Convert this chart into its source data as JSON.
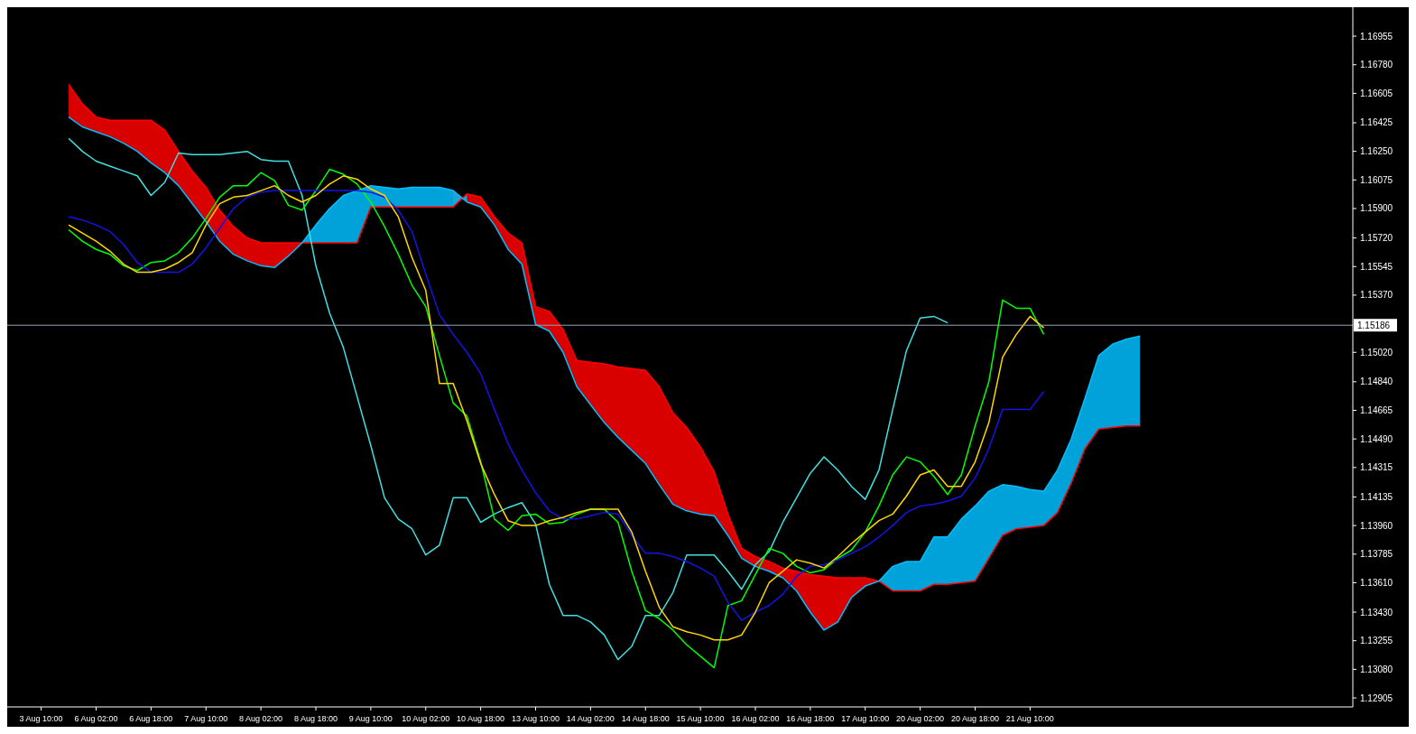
{
  "chart_data": {
    "type": "line",
    "categories": [
      "3 Aug 10:00",
      null,
      null,
      null,
      "6 Aug 02:00",
      null,
      null,
      null,
      "6 Aug 18:00",
      null,
      null,
      null,
      "7 Aug 10:00",
      null,
      null,
      null,
      "8 Aug 02:00",
      null,
      null,
      null,
      "8 Aug 18:00",
      null,
      null,
      null,
      "9 Aug 10:00",
      null,
      null,
      null,
      "10 Aug 02:00",
      null,
      null,
      null,
      "10 Aug 18:00",
      null,
      null,
      null,
      "13 Aug 10:00",
      null,
      null,
      null,
      "14 Aug 02:00",
      null,
      null,
      null,
      "14 Aug 18:00",
      null,
      null,
      null,
      "15 Aug 10:00",
      null,
      null,
      null,
      "16 Aug 02:00",
      null,
      null,
      null,
      "16 Aug 18:00",
      null,
      null,
      null,
      "17 Aug 10:00",
      null,
      null,
      null,
      "20 Aug 02:00",
      null,
      null,
      null,
      "20 Aug 18:00",
      null,
      null,
      null,
      "21 Aug 10:00",
      null,
      null,
      null,
      null,
      null,
      null,
      null,
      null,
      null,
      null,
      null,
      null,
      null,
      null,
      null,
      null,
      null,
      null,
      null,
      null,
      null,
      null,
      null
    ],
    "ylim": [
      1.1285,
      1.1711
    ],
    "yticks": [
      1.12905,
      {
        "value": 1.1308,
        "label": "1.13080"
      },
      1.13255,
      {
        "value": 1.1343,
        "label": "1.13430"
      },
      {
        "value": 1.1361,
        "label": "1.13610"
      },
      1.13785,
      {
        "value": 1.1396,
        "label": "1.13960"
      },
      1.14135,
      1.14315,
      {
        "value": 1.1449,
        "label": "1.14490"
      },
      1.14665,
      {
        "value": 1.1484,
        "label": "1.14840"
      },
      {
        "value": 1.1502,
        "label": "1.15020"
      },
      {
        "value": 1.1537,
        "label": "1.15370"
      },
      1.15545,
      {
        "value": 1.1572,
        "label": "1.15720"
      },
      {
        "value": 1.159,
        "label": "1.15900"
      },
      1.16075,
      {
        "value": 1.1625,
        "label": "1.16250"
      },
      1.16425,
      1.16605,
      {
        "value": 1.1678,
        "label": "1.16780"
      },
      1.16955
    ],
    "ref_lines": [
      {
        "axis": "y",
        "value": 1.15186,
        "label": "1.15186",
        "color": "#8fa3b8"
      }
    ],
    "series": [
      {
        "color": "#ff0000",
        "lower": [
          null,
          null,
          1.1646,
          1.164,
          1.1637,
          1.1634,
          1.163,
          1.1625,
          1.1618,
          1.1612,
          1.1604,
          1.1593,
          1.1582,
          1.157,
          1.1562,
          1.1558,
          1.1555,
          1.1554,
          1.1561,
          1.1569,
          null,
          null,
          null,
          null,
          null,
          null,
          null,
          null,
          null,
          null,
          1.1601,
          1.1594,
          1.1591,
          1.158,
          1.1565,
          1.1556,
          1.1519,
          1.1515,
          1.1502,
          1.1481,
          1.147,
          1.1459,
          1.145,
          1.1442,
          1.1434,
          1.1421,
          1.1409,
          1.1405,
          1.1403,
          1.1402,
          1.139,
          1.1376,
          1.1371,
          1.1368,
          1.1364,
          1.1356,
          1.1343,
          1.1332,
          1.1337,
          1.1352,
          1.1359,
          1.1362,
          null,
          null,
          null,
          null,
          null,
          null,
          null,
          null,
          null,
          null,
          null,
          null,
          null,
          null,
          null,
          null,
          null,
          null,
          null,
          null,
          null,
          null,
          null,
          null,
          null,
          null,
          null,
          null,
          null,
          null,
          null,
          null,
          null,
          null
        ],
        "upper": [
          null,
          null,
          1.1666,
          1.1654,
          1.1646,
          1.1644,
          1.1644,
          1.1644,
          1.1644,
          1.1638,
          1.1625,
          1.1613,
          1.1603,
          1.1589,
          1.1579,
          1.1572,
          1.1569,
          1.1569,
          1.1569,
          1.1569,
          null,
          null,
          null,
          null,
          null,
          null,
          null,
          null,
          null,
          null,
          1.1591,
          1.1599,
          1.1597,
          1.1585,
          1.1575,
          1.1569,
          1.153,
          1.1527,
          1.1516,
          1.1497,
          1.1496,
          1.1495,
          1.1493,
          1.1492,
          1.1491,
          1.1481,
          1.1465,
          1.1456,
          1.1444,
          1.1429,
          1.1403,
          1.1382,
          1.1377,
          1.1374,
          1.137,
          1.1368,
          1.1366,
          1.1365,
          1.1364,
          1.1364,
          1.1364,
          1.1362,
          null,
          null,
          null,
          null,
          null,
          null,
          null,
          null,
          null,
          null,
          null,
          null,
          null,
          null,
          null,
          null,
          null,
          null,
          null,
          null,
          null,
          null,
          null,
          null,
          null,
          null,
          null,
          null,
          null,
          null,
          null,
          null,
          null,
          null
        ],
        "values": [
          null,
          null,
          1.1666,
          1.1654,
          1.1646,
          1.1644,
          1.1644,
          1.1644,
          1.1644,
          1.1638,
          1.1625,
          1.1613,
          1.1603,
          1.1589,
          1.1579,
          1.1572,
          1.1569,
          1.1569,
          1.1569,
          1.1569,
          1.1569,
          1.1569,
          1.1569,
          1.1569,
          1.1591,
          1.1591,
          1.1591,
          1.1591,
          1.1591,
          1.1591,
          1.1591,
          1.1599,
          1.1597,
          1.1585,
          1.1575,
          1.1569,
          1.153,
          1.1527,
          1.1516,
          1.1497,
          1.1496,
          1.1495,
          1.1493,
          1.1492,
          1.1491,
          1.1481,
          1.1465,
          1.1456,
          1.1444,
          1.1429,
          1.1403,
          1.1382,
          1.1377,
          1.1374,
          1.137,
          1.1368,
          1.1366,
          1.1365,
          1.1364,
          1.1364,
          1.1364,
          1.1362,
          1.1356,
          1.1356,
          1.1356,
          1.136,
          1.136,
          1.1361,
          1.1362,
          1.1376,
          1.139,
          1.1394,
          1.1395,
          1.1396,
          1.1404,
          1.1422,
          1.1443,
          1.1455,
          1.1456,
          1.1457,
          1.1457,
          null,
          null,
          null,
          null,
          null,
          null,
          null,
          null,
          null,
          null,
          null,
          null,
          null,
          null,
          null
        ]
      },
      {
        "color": "#00bfff",
        "lower": [
          null,
          null,
          null,
          null,
          null,
          null,
          null,
          null,
          null,
          null,
          null,
          null,
          null,
          null,
          null,
          null,
          null,
          null,
          null,
          1.1569,
          1.1569,
          1.1569,
          1.1569,
          1.1569,
          1.1591,
          1.1591,
          1.1591,
          1.1591,
          1.1591,
          1.1591,
          1.1591,
          1.1599,
          null,
          null,
          null,
          null,
          null,
          null,
          null,
          null,
          null,
          null,
          null,
          null,
          null,
          null,
          null,
          null,
          null,
          null,
          null,
          null,
          null,
          null,
          null,
          null,
          null,
          null,
          null,
          null,
          null,
          1.1362,
          1.1356,
          1.1356,
          1.1356,
          1.136,
          1.136,
          1.1361,
          1.1362,
          1.1376,
          1.139,
          1.1394,
          1.1395,
          1.1396,
          1.1404,
          1.1422,
          1.1443,
          1.1455,
          1.1456,
          1.1457,
          1.1457,
          null,
          null,
          null,
          null,
          null,
          null,
          null,
          null,
          null,
          null,
          null,
          null,
          null,
          null,
          null
        ],
        "upper": [
          null,
          null,
          null,
          null,
          null,
          null,
          null,
          null,
          null,
          null,
          null,
          null,
          null,
          null,
          null,
          null,
          null,
          null,
          null,
          1.1569,
          1.158,
          1.159,
          1.1598,
          1.1601,
          1.1604,
          1.1603,
          1.1602,
          1.1603,
          1.1603,
          1.1603,
          1.1601,
          1.1594,
          null,
          null,
          null,
          null,
          null,
          null,
          null,
          null,
          null,
          null,
          null,
          null,
          null,
          null,
          null,
          null,
          null,
          null,
          null,
          null,
          null,
          null,
          null,
          null,
          null,
          null,
          null,
          null,
          null,
          1.1362,
          1.1371,
          1.1374,
          1.1374,
          1.1389,
          1.1389,
          1.14,
          1.1408,
          1.1417,
          1.1421,
          1.142,
          1.1418,
          1.1417,
          1.143,
          1.1449,
          1.1474,
          1.15,
          1.1507,
          1.151,
          1.1512,
          null,
          null,
          null,
          null,
          null,
          null,
          null,
          null,
          null,
          null,
          null,
          null,
          null,
          null,
          null
        ],
        "values": [
          null,
          null,
          1.1646,
          1.164,
          1.1637,
          1.1634,
          1.163,
          1.1625,
          1.1618,
          1.1612,
          1.1604,
          1.1593,
          1.1582,
          1.157,
          1.1562,
          1.1558,
          1.1555,
          1.1554,
          1.1561,
          1.1569,
          1.158,
          1.159,
          1.1598,
          1.1601,
          1.1604,
          1.1603,
          1.1602,
          1.1603,
          1.1603,
          1.1603,
          1.1601,
          1.1594,
          1.1591,
          1.158,
          1.1565,
          1.1556,
          1.1519,
          1.1515,
          1.1502,
          1.1481,
          1.147,
          1.1459,
          1.145,
          1.1442,
          1.1434,
          1.1421,
          1.1409,
          1.1405,
          1.1403,
          1.1402,
          1.139,
          1.1376,
          1.1371,
          1.1368,
          1.1364,
          1.1356,
          1.1343,
          1.1332,
          1.1337,
          1.1352,
          1.1359,
          1.1362,
          1.1371,
          1.1374,
          1.1374,
          1.1389,
          1.1389,
          1.14,
          1.1408,
          1.1417,
          1.1421,
          1.142,
          1.1418,
          1.1417,
          1.143,
          1.1449,
          1.1474,
          1.15,
          1.1507,
          1.151,
          1.1512,
          null,
          null,
          null,
          null,
          null,
          null,
          null,
          null,
          null,
          null,
          null,
          null,
          null,
          null,
          null
        ]
      },
      {
        "color": "#40e0e0",
        "values": [
          null,
          null,
          1.1633,
          1.1625,
          1.1619,
          1.1616,
          1.1613,
          1.161,
          1.1598,
          1.1606,
          1.1624,
          1.1623,
          1.1623,
          1.1623,
          1.1624,
          1.1625,
          1.162,
          1.1619,
          1.1619,
          1.1598,
          1.1555,
          1.1526,
          1.1505,
          1.1475,
          1.1445,
          1.1413,
          1.14,
          1.1394,
          1.1378,
          1.1384,
          1.1413,
          1.1413,
          1.1398,
          1.1403,
          1.1407,
          1.141,
          1.1397,
          1.136,
          1.1341,
          1.1341,
          1.1337,
          1.1329,
          1.1314,
          1.1322,
          1.1341,
          1.1341,
          1.1355,
          1.1378,
          1.1378,
          1.1378,
          1.1368,
          1.1357,
          1.1372,
          1.138,
          1.1398,
          1.1413,
          1.1428,
          1.1438,
          1.143,
          1.142,
          1.1412,
          1.143,
          1.1467,
          1.1503,
          1.1523,
          1.1524,
          1.152,
          null,
          null,
          null,
          null,
          null,
          null,
          null,
          null,
          null,
          null,
          null,
          null,
          null,
          null,
          null,
          null,
          null,
          null,
          null,
          null,
          null,
          null,
          null,
          null,
          null,
          null,
          null,
          null,
          null
        ]
      },
      {
        "color": "#00ff00",
        "values": [
          null,
          null,
          1.1577,
          1.157,
          1.1565,
          1.1562,
          1.1555,
          1.1552,
          1.1557,
          1.1558,
          1.1563,
          1.1572,
          1.1584,
          1.1597,
          1.1604,
          1.1604,
          1.1612,
          1.1607,
          1.1592,
          1.1589,
          1.1601,
          1.1614,
          1.1611,
          1.1605,
          1.1594,
          1.1579,
          1.1562,
          1.1543,
          1.153,
          1.15,
          1.1471,
          1.1463,
          1.1435,
          1.14,
          1.1393,
          1.1402,
          1.1403,
          1.1397,
          1.1398,
          1.1403,
          1.1406,
          1.1406,
          1.1398,
          1.1368,
          1.1344,
          1.1339,
          1.1332,
          1.1323,
          1.1316,
          1.1309,
          1.1347,
          1.135,
          1.1366,
          1.1382,
          1.1379,
          1.1371,
          1.1367,
          1.1369,
          1.1376,
          1.1381,
          1.1392,
          1.1408,
          1.1427,
          1.1438,
          1.1435,
          1.1426,
          1.1415,
          1.1427,
          1.1457,
          1.1484,
          1.1534,
          1.1529,
          1.1529,
          1.1513,
          null,
          null,
          null,
          null,
          null,
          null,
          null,
          null,
          null,
          null,
          null,
          null,
          null,
          null,
          null,
          null,
          null,
          null,
          null,
          null,
          null,
          null
        ]
      },
      {
        "color": "#1414e6",
        "values": [
          null,
          null,
          1.1585,
          1.1583,
          1.158,
          1.1576,
          1.1568,
          1.1557,
          1.1551,
          1.1551,
          1.1551,
          1.1556,
          1.1566,
          1.1578,
          1.159,
          1.1597,
          1.16,
          1.1601,
          1.1601,
          1.1601,
          1.1601,
          1.1601,
          1.1601,
          1.1601,
          1.16,
          1.1597,
          1.1589,
          1.1576,
          1.155,
          1.1525,
          1.1513,
          1.1502,
          1.1489,
          1.1467,
          1.1446,
          1.143,
          1.1416,
          1.1405,
          1.14,
          1.14,
          1.1402,
          1.1404,
          1.1403,
          1.139,
          1.1379,
          1.1379,
          1.1377,
          1.1374,
          1.137,
          1.1365,
          1.1349,
          1.1338,
          1.1343,
          1.1347,
          1.1354,
          1.1365,
          1.1371,
          1.1372,
          1.1375,
          1.1379,
          1.1383,
          1.1389,
          1.1396,
          1.1404,
          1.1408,
          1.1409,
          1.1411,
          1.1414,
          1.1425,
          1.1443,
          1.1467,
          1.1467,
          1.1467,
          1.1478,
          null,
          null,
          null,
          null,
          null,
          null,
          null,
          null,
          null,
          null,
          null,
          null,
          null,
          null,
          null,
          null,
          null,
          null,
          null,
          null,
          null,
          null
        ]
      },
      {
        "color": "#ffd700",
        "values": [
          null,
          null,
          1.158,
          1.1575,
          1.157,
          1.1564,
          1.1556,
          1.1551,
          1.1551,
          1.1553,
          1.1557,
          1.1563,
          1.158,
          1.1593,
          1.1597,
          1.1598,
          1.1601,
          1.1604,
          1.1598,
          1.1594,
          1.1598,
          1.1605,
          1.161,
          1.1608,
          1.1602,
          1.1598,
          1.1585,
          1.156,
          1.154,
          1.1483,
          1.1483,
          1.146,
          1.1434,
          1.1415,
          1.1399,
          1.1396,
          1.1396,
          1.1399,
          1.1401,
          1.1404,
          1.1406,
          1.1406,
          1.1406,
          1.1392,
          1.1368,
          1.1346,
          1.1334,
          1.1331,
          1.1329,
          1.1326,
          1.1326,
          1.1329,
          1.1343,
          1.1361,
          1.1368,
          1.1375,
          1.1373,
          1.137,
          1.1377,
          1.1385,
          1.1392,
          1.1399,
          1.1403,
          1.1414,
          1.1427,
          1.143,
          1.142,
          1.142,
          1.1435,
          1.1459,
          1.1499,
          1.1513,
          1.1524,
          1.1517,
          null,
          null,
          null,
          null,
          null,
          null,
          null,
          null,
          null,
          null,
          null,
          null,
          null,
          null,
          null,
          null,
          null,
          null,
          null,
          null,
          null,
          null
        ]
      }
    ]
  }
}
